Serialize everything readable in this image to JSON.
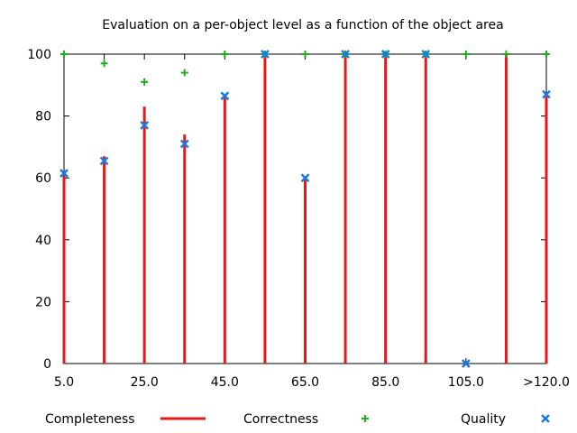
{
  "chart_data": {
    "type": "bar",
    "title": "Evaluation on a per-object level as a function of the object area",
    "xlabel": "",
    "ylabel": "",
    "ylim": [
      0,
      100
    ],
    "y_ticks": [
      0,
      20,
      40,
      60,
      80,
      100
    ],
    "x_tick_labels": [
      "5.0",
      "25.0",
      "45.0",
      "65.0",
      "85.0",
      "105.0",
      ">120.0"
    ],
    "categories": [
      "5.0",
      "15.0",
      "25.0",
      "35.0",
      "45.0",
      "55.0",
      "65.0",
      "75.0",
      "85.0",
      "95.0",
      "105.0",
      "115.0",
      ">120.0"
    ],
    "grid": false,
    "legend_position": "bottom",
    "series": [
      {
        "name": "Completeness",
        "marker": "impulse",
        "color": "#e41a1a",
        "values": [
          61,
          67,
          83,
          74,
          87,
          100,
          60,
          100,
          100,
          100,
          0,
          100,
          87
        ]
      },
      {
        "name": "Correctness",
        "marker": "plus",
        "color": "#1ab01a",
        "values": [
          100,
          97,
          91,
          94,
          100,
          100,
          100,
          100,
          100,
          100,
          100,
          100,
          100
        ]
      },
      {
        "name": "Quality",
        "marker": "cross",
        "color": "#1a7be4",
        "values": [
          61.5,
          65.5,
          77,
          71,
          86.5,
          100,
          60,
          100,
          100,
          100,
          0,
          null,
          87
        ]
      }
    ]
  }
}
